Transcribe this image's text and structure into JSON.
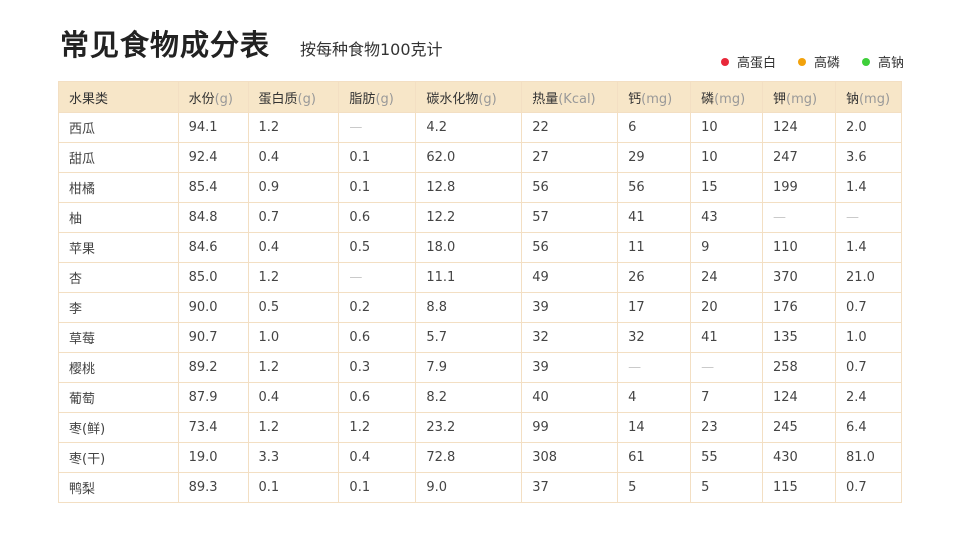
{
  "title": "常见食物成分表",
  "subtitle": "按每种食物100克计",
  "legend": [
    {
      "label": "高蛋白",
      "color": "#e8283a"
    },
    {
      "label": "高磷",
      "color": "#f2a20c"
    },
    {
      "label": "高钠",
      "color": "#3ecf3a"
    }
  ],
  "columns": [
    {
      "name": "水果类",
      "unit": ""
    },
    {
      "name": "水份",
      "unit": "(g)"
    },
    {
      "name": "蛋白质",
      "unit": "(g)"
    },
    {
      "name": "脂肪",
      "unit": "(g)"
    },
    {
      "name": "碳水化物",
      "unit": "(g)"
    },
    {
      "name": "热量",
      "unit": "(Kcal)"
    },
    {
      "name": "钙",
      "unit": "(mg)"
    },
    {
      "name": "磷",
      "unit": "(mg)"
    },
    {
      "name": "钾",
      "unit": "(mg)"
    },
    {
      "name": "钠",
      "unit": "(mg)"
    }
  ],
  "rows": [
    [
      "西瓜",
      "94.1",
      "1.2",
      "—",
      "4.2",
      "22",
      "6",
      "10",
      "124",
      "2.0"
    ],
    [
      "甜瓜",
      "92.4",
      "0.4",
      "0.1",
      "62.0",
      "27",
      "29",
      "10",
      "247",
      "3.6"
    ],
    [
      "柑橘",
      "85.4",
      "0.9",
      "0.1",
      "12.8",
      "56",
      "56",
      "15",
      "199",
      "1.4"
    ],
    [
      "柚",
      "84.8",
      "0.7",
      "0.6",
      "12.2",
      "57",
      "41",
      "43",
      "—",
      "—"
    ],
    [
      "苹果",
      "84.6",
      "0.4",
      "0.5",
      "18.0",
      "56",
      "11",
      "9",
      "110",
      "1.4"
    ],
    [
      "杏",
      "85.0",
      "1.2",
      "—",
      "11.1",
      "49",
      "26",
      "24",
      "370",
      "21.0"
    ],
    [
      "李",
      "90.0",
      "0.5",
      "0.2",
      "8.8",
      "39",
      "17",
      "20",
      "176",
      "0.7"
    ],
    [
      "草莓",
      "90.7",
      "1.0",
      "0.6",
      "5.7",
      "32",
      "32",
      "41",
      "135",
      "1.0"
    ],
    [
      "樱桃",
      "89.2",
      "1.2",
      "0.3",
      "7.9",
      "39",
      "—",
      "—",
      "258",
      "0.7"
    ],
    [
      "葡萄",
      "87.9",
      "0.4",
      "0.6",
      "8.2",
      "40",
      "4",
      "7",
      "124",
      "2.4"
    ],
    [
      "枣(鲜)",
      "73.4",
      "1.2",
      "1.2",
      "23.2",
      "99",
      "14",
      "23",
      "245",
      "6.4"
    ],
    [
      "枣(干)",
      "19.0",
      "3.3",
      "0.4",
      "72.8",
      "308",
      "61",
      "55",
      "430",
      "81.0"
    ],
    [
      "鸭梨",
      "89.3",
      "0.1",
      "0.1",
      "9.0",
      "37",
      "5",
      "5",
      "115",
      "0.7"
    ]
  ]
}
